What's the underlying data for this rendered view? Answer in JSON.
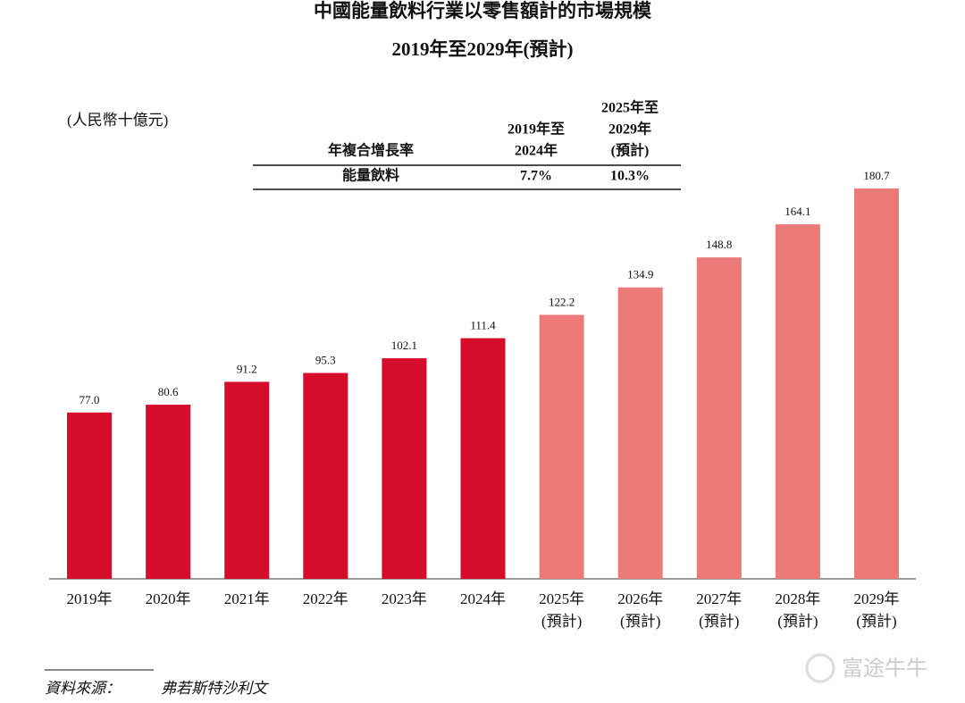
{
  "chart_data": {
    "type": "bar",
    "title": "中國能量飲料行業以零售額計的市場規模",
    "subtitle": "2019年至2029年(預計)",
    "unit": "(人民幣十億元)",
    "categories": [
      [
        "2019年"
      ],
      [
        "2020年"
      ],
      [
        "2021年"
      ],
      [
        "2022年"
      ],
      [
        "2023年"
      ],
      [
        "2024年"
      ],
      [
        "2025年",
        "(預計)"
      ],
      [
        "2026年",
        "(預計)"
      ],
      [
        "2027年",
        "(預計)"
      ],
      [
        "2028年",
        "(預計)"
      ],
      [
        "2029年",
        "(預計)"
      ]
    ],
    "values": [
      77.0,
      80.6,
      91.2,
      95.3,
      102.1,
      111.4,
      122.2,
      134.9,
      148.8,
      164.1,
      180.7
    ],
    "value_labels": [
      "77.0",
      "80.6",
      "91.2",
      "95.3",
      "102.1",
      "111.4",
      "122.2",
      "134.9",
      "148.8",
      "164.1",
      "180.7"
    ],
    "colors": [
      "#d50d2b",
      "#d50d2b",
      "#d50d2b",
      "#d50d2b",
      "#d50d2b",
      "#d50d2b",
      "#ec7a78",
      "#ec7a78",
      "#ec7a78",
      "#ec7a78",
      "#ec7a78"
    ],
    "cagr_table": {
      "header": [
        [
          "年複合增長率"
        ],
        [
          "2019年至",
          "2024年"
        ],
        [
          "2025年至",
          "2029年",
          "(預計)"
        ]
      ],
      "row": [
        "能量飲料",
        "7.7%",
        "10.3%"
      ]
    },
    "source_label": "資料來源：",
    "source": "弗若斯特沙利文",
    "watermark": "富途牛牛"
  }
}
